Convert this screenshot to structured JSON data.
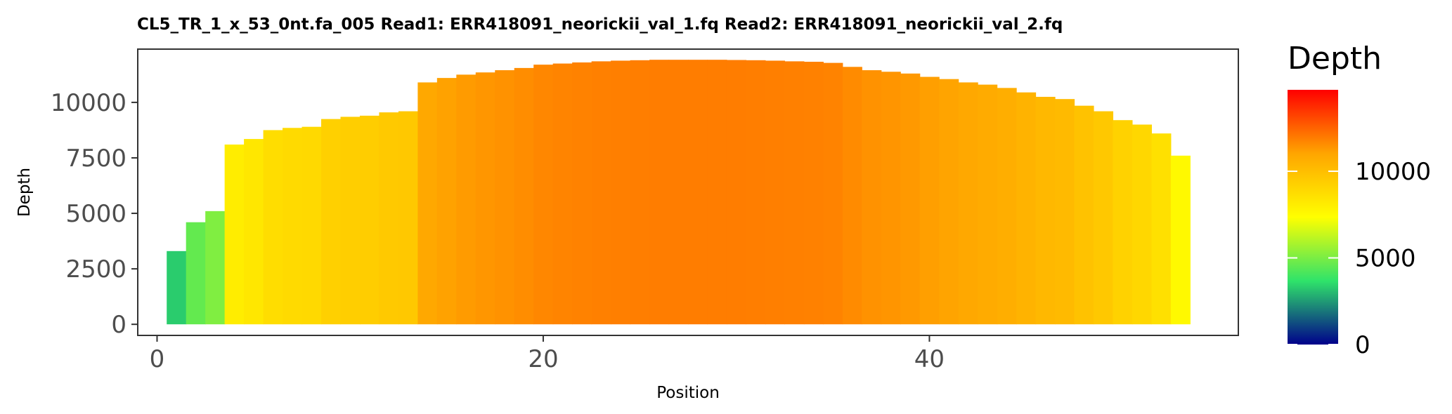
{
  "chart_data": {
    "type": "bar",
    "title": "CL5_TR_1_x_53_0nt.fa_005   Read1: ERR418091_neorickii_val_1.fq   Read2: ERR418091_neorickii_val_2.fq",
    "xlabel": "Position",
    "ylabel": "Depth",
    "x": [
      1,
      2,
      3,
      4,
      5,
      6,
      7,
      8,
      9,
      10,
      11,
      12,
      13,
      14,
      15,
      16,
      17,
      18,
      19,
      20,
      21,
      22,
      23,
      24,
      25,
      26,
      27,
      28,
      29,
      30,
      31,
      32,
      33,
      34,
      35,
      36,
      37,
      38,
      39,
      40,
      41,
      42,
      43,
      44,
      45,
      46,
      47,
      48,
      49,
      50,
      51,
      52,
      53
    ],
    "values": [
      3300,
      4600,
      5100,
      8100,
      8350,
      8750,
      8850,
      8900,
      9250,
      9350,
      9400,
      9550,
      9600,
      10900,
      11100,
      11250,
      11350,
      11450,
      11550,
      11700,
      11750,
      11800,
      11850,
      11880,
      11900,
      11920,
      11920,
      11920,
      11920,
      11910,
      11900,
      11880,
      11850,
      11830,
      11780,
      11600,
      11450,
      11380,
      11300,
      11150,
      11050,
      10900,
      10800,
      10650,
      10450,
      10250,
      10150,
      9850,
      9600,
      9200,
      9000,
      8600,
      7600
    ],
    "xlim": [
      -1,
      56
    ],
    "ylim": [
      -500,
      12400
    ],
    "x_ticks": [
      "0",
      "20",
      "40"
    ],
    "y_ticks": [
      "0",
      "2500",
      "5000",
      "7500",
      "10000"
    ],
    "grid": false,
    "legend": {
      "title": "Depth",
      "placement": "right",
      "type": "colorbar",
      "range": [
        0,
        14700
      ],
      "ticks": [
        "0",
        "5000",
        "10000"
      ],
      "colors": [
        "#00008b",
        "#2fe36a",
        "#ffff00",
        "#ffa500",
        "#ff0000"
      ]
    }
  }
}
